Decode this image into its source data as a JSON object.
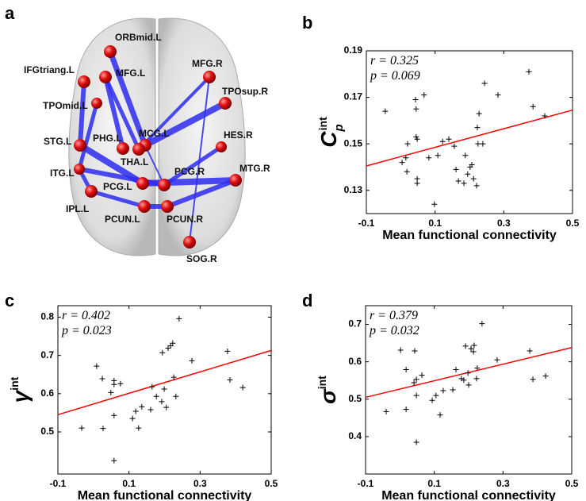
{
  "diagram": {
    "label": "a",
    "nodes": [
      "ORBmid.L",
      "MFG.R",
      "IFGtriang.L",
      "MFG.L",
      "TPOmid.L",
      "TPOsup.R",
      "STG.L",
      "PHG.L",
      "MCG.L",
      "HES.R",
      "THA.L",
      "ITG.L",
      "PCG.L",
      "PCG.R",
      "MTG.R",
      "IPL.L",
      "PCUN.L",
      "PCUN.R",
      "SOG.R"
    ]
  },
  "chart_data": [
    {
      "type": "scatter",
      "panel": "b",
      "ylabel": {
        "base": "C",
        "sub": "p",
        "sup": "int"
      },
      "xlabel": "Mean functional connectivity",
      "annotations": [
        "r = 0.325",
        "p = 0.069"
      ],
      "xlim": [
        -0.1,
        0.5
      ],
      "xticks": [
        -0.1,
        0.1,
        0.3,
        0.5
      ],
      "ylim": [
        0.12,
        0.19
      ],
      "yticks": [
        0.13,
        0.15,
        0.17,
        0.19
      ],
      "color": "#000000",
      "x": [
        -0.045,
        0.02,
        0.004,
        0.015,
        0.018,
        0.043,
        0.045,
        0.045,
        0.048,
        0.048,
        0.048,
        0.068,
        0.082,
        0.098,
        0.108,
        0.122,
        0.14,
        0.156,
        0.161,
        0.168,
        0.184,
        0.188,
        0.195,
        0.202,
        0.207,
        0.212,
        0.221,
        0.225,
        0.223,
        0.228,
        0.239,
        0.244,
        0.283,
        0.373,
        0.385,
        0.419
      ],
      "y": [
        0.164,
        0.15,
        0.142,
        0.144,
        0.138,
        0.169,
        0.165,
        0.153,
        0.152,
        0.135,
        0.133,
        0.171,
        0.144,
        0.124,
        0.145,
        0.151,
        0.152,
        0.149,
        0.139,
        0.134,
        0.133,
        0.145,
        0.137,
        0.14,
        0.141,
        0.135,
        0.132,
        0.15,
        0.157,
        0.163,
        0.15,
        0.176,
        0.171,
        0.181,
        0.166,
        0.162
      ],
      "fit": {
        "color": "#ff0000",
        "x": [
          -0.1,
          0.5
        ],
        "y": [
          0.1405,
          0.1645
        ]
      }
    },
    {
      "type": "scatter",
      "panel": "c",
      "ylabel": {
        "base": "γ",
        "sup": "int"
      },
      "xlabel": "Mean functional connectivity",
      "annotations": [
        "r = 0.402",
        "p = 0.023"
      ],
      "xlim": [
        -0.1,
        0.5
      ],
      "xticks": [
        -0.1,
        0.1,
        0.3,
        0.5
      ],
      "ylim": [
        0.39,
        0.83
      ],
      "yticks": [
        0.5,
        0.6,
        0.7,
        0.8
      ],
      "color": "#000000",
      "x": [
        -0.033,
        0.009,
        0.025,
        0.027,
        0.049,
        0.058,
        0.058,
        0.058,
        0.058,
        0.076,
        0.11,
        0.119,
        0.127,
        0.136,
        0.161,
        0.165,
        0.177,
        0.192,
        0.194,
        0.199,
        0.205,
        0.21,
        0.217,
        0.223,
        0.226,
        0.232,
        0.241,
        0.277,
        0.377,
        0.384,
        0.42
      ],
      "y": [
        0.51,
        0.672,
        0.639,
        0.509,
        0.603,
        0.634,
        0.624,
        0.543,
        0.425,
        0.626,
        0.535,
        0.554,
        0.51,
        0.566,
        0.558,
        0.618,
        0.593,
        0.579,
        0.707,
        0.612,
        0.564,
        0.719,
        0.725,
        0.732,
        0.643,
        0.593,
        0.796,
        0.686,
        0.711,
        0.636,
        0.616
      ],
      "fit": {
        "color": "#ff0000",
        "x": [
          -0.1,
          0.5
        ],
        "y": [
          0.545,
          0.713
        ]
      }
    },
    {
      "type": "scatter",
      "panel": "d",
      "ylabel": {
        "base": "σ",
        "sup": "int"
      },
      "xlabel": "Mean functional connectivity",
      "annotations": [
        "r = 0.379",
        "p = 0.032"
      ],
      "xlim": [
        -0.1,
        0.5
      ],
      "xticks": [
        -0.1,
        0.1,
        0.3,
        0.5
      ],
      "ylim": [
        0.3,
        0.75
      ],
      "yticks": [
        0.4,
        0.5,
        0.6,
        0.7
      ],
      "color": "#000000",
      "x": [
        -0.04,
        0.002,
        0.018,
        0.018,
        0.041,
        0.043,
        0.048,
        0.048,
        0.048,
        0.064,
        0.094,
        0.105,
        0.117,
        0.126,
        0.154,
        0.163,
        0.179,
        0.186,
        0.191,
        0.198,
        0.2,
        0.207,
        0.214,
        0.216,
        0.223,
        0.225,
        0.239,
        0.283,
        0.378,
        0.387,
        0.424
      ],
      "y": [
        0.467,
        0.631,
        0.579,
        0.473,
        0.544,
        0.629,
        0.553,
        0.51,
        0.385,
        0.564,
        0.497,
        0.51,
        0.458,
        0.523,
        0.525,
        0.579,
        0.555,
        0.551,
        0.642,
        0.57,
        0.538,
        0.635,
        0.627,
        0.644,
        0.555,
        0.583,
        0.702,
        0.605,
        0.629,
        0.553,
        0.562
      ],
      "fit": {
        "color": "#ff0000",
        "x": [
          -0.1,
          0.5
        ],
        "y": [
          0.505,
          0.638
        ]
      }
    }
  ]
}
